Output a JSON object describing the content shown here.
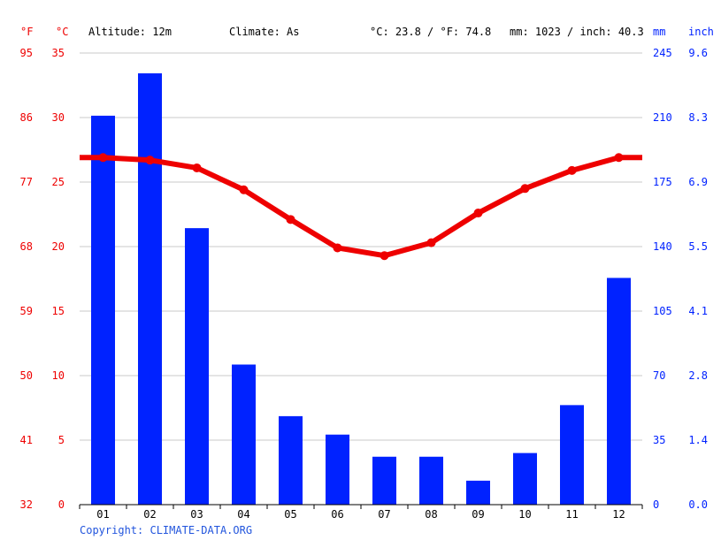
{
  "header": {
    "unit_f": "°F",
    "unit_c": "°C",
    "altitude": "Altitude: 12m",
    "climate": "Climate: As",
    "temp_avg": "°C: 23.8 / °F: 74.8",
    "precip_total": "mm: 1023 / inch: 40.3",
    "unit_mm": "mm",
    "unit_inch": "inch"
  },
  "footer": {
    "copyright": "Copyright: CLIMATE-DATA.ORG"
  },
  "colors": {
    "temperature": "#ee0000",
    "precipitation": "#0022ff",
    "grid": "#c8c8c8"
  },
  "chart_data": {
    "type": "bar",
    "categories": [
      "01",
      "02",
      "03",
      "04",
      "05",
      "06",
      "07",
      "08",
      "09",
      "10",
      "11",
      "12"
    ],
    "series": [
      {
        "kind": "bar",
        "axis": "right",
        "unit": "mm",
        "values": [
          211,
          234,
          150,
          76,
          48,
          38,
          26,
          26,
          13,
          28,
          54,
          123
        ]
      },
      {
        "kind": "line",
        "axis": "left",
        "unit": "°C",
        "values": [
          26.9,
          26.7,
          26.1,
          24.4,
          22.1,
          19.9,
          19.3,
          20.3,
          22.6,
          24.5,
          25.9,
          26.9
        ]
      }
    ],
    "y_left": {
      "celsius_ticks": [
        "0",
        "5",
        "10",
        "15",
        "20",
        "25",
        "30",
        "35"
      ],
      "fahrenheit_ticks": [
        "32",
        "41",
        "50",
        "59",
        "68",
        "77",
        "86",
        "95"
      ],
      "ylim": [
        0,
        35
      ]
    },
    "y_right": {
      "mm_ticks": [
        "0",
        "35",
        "70",
        "105",
        "140",
        "175",
        "210",
        "245"
      ],
      "inch_ticks": [
        "0.0",
        "1.4",
        "2.8",
        "4.1",
        "5.5",
        "6.9",
        "8.3",
        "9.6"
      ],
      "ylim": [
        0,
        245
      ]
    },
    "grid": true
  }
}
